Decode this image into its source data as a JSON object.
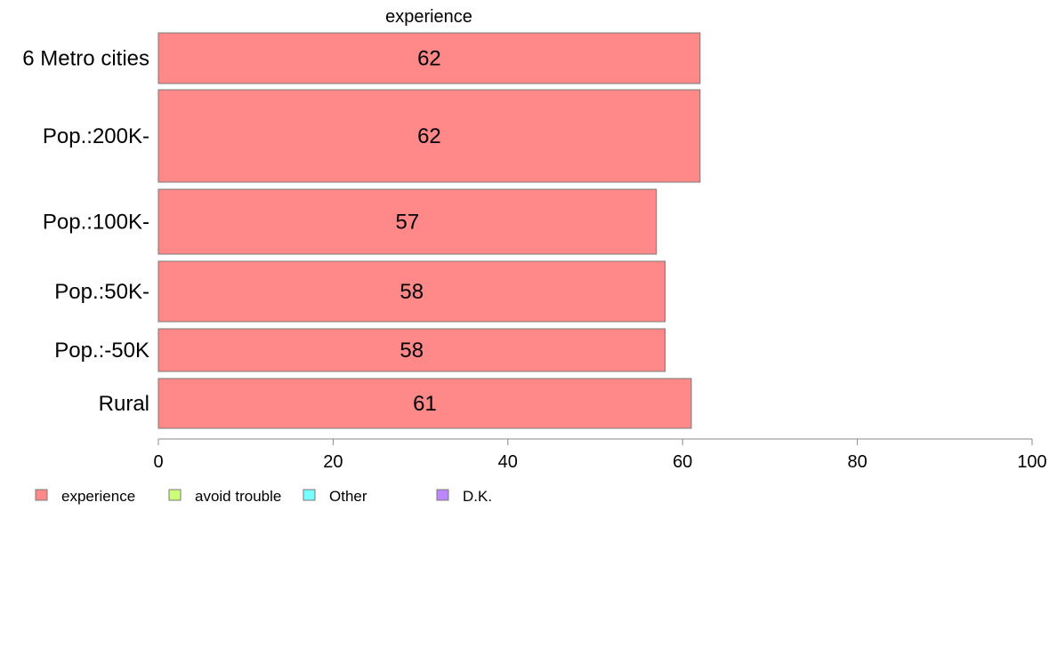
{
  "chart_data": {
    "type": "bar",
    "orientation": "horizontal",
    "title": "experience",
    "categories": [
      "6 Metro cities",
      "Pop.:200K-",
      "Pop.:100K-",
      "Pop.:50K-",
      "Pop.:-50K",
      "Rural"
    ],
    "series": [
      {
        "name": "experience",
        "values": [
          62,
          62,
          57,
          58,
          58,
          61
        ],
        "color": "#ff8888"
      }
    ],
    "data_labels": [
      "62",
      "62",
      "57",
      "58",
      "58",
      "61"
    ],
    "xlim": [
      0,
      100
    ],
    "x_ticks": [
      "0",
      "20",
      "40",
      "60",
      "80",
      "100"
    ],
    "grid": false,
    "legend": {
      "placement": "bottom-left",
      "entries": [
        {
          "label": "experience",
          "color": "#ff8888"
        },
        {
          "label": "avoid trouble",
          "color": "#ccff77"
        },
        {
          "label": "Other",
          "color": "#77ffff"
        },
        {
          "label": "D.K.",
          "color": "#bb88ff"
        }
      ]
    }
  }
}
